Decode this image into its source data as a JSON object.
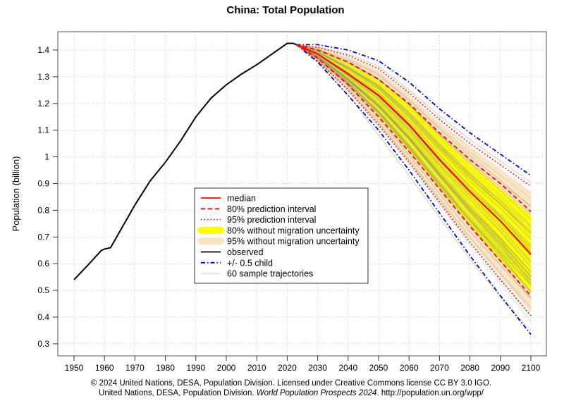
{
  "chart_data": {
    "type": "line",
    "title": "China: Total Population",
    "xlabel": "",
    "ylabel": "Population (billion)",
    "xlim": [
      1945,
      2105
    ],
    "ylim": [
      0.29,
      1.46
    ],
    "x_ticks": [
      1950,
      1960,
      1970,
      1980,
      1990,
      2000,
      2010,
      2020,
      2030,
      2040,
      2050,
      2060,
      2070,
      2080,
      2090,
      2100
    ],
    "y_ticks": [
      0.3,
      0.4,
      0.5,
      0.6,
      0.7,
      0.8,
      0.9,
      1,
      1.1,
      1.2,
      1.3,
      1.4
    ],
    "y_tick_labels": [
      "0.3",
      "0.4",
      "0.5",
      "0.6",
      "0.7",
      "0.8",
      "0.9",
      "1",
      "1.1",
      "1.2",
      "1.3",
      "1.4"
    ],
    "grid": true,
    "legend_position": "center",
    "observed": {
      "name": "observed",
      "color": "#000000",
      "x": [
        1950,
        1955,
        1959,
        1960,
        1962,
        1965,
        1970,
        1975,
        1980,
        1985,
        1990,
        1995,
        2000,
        2005,
        2010,
        2015,
        2020,
        2022,
        2023
      ],
      "y": [
        0.54,
        0.6,
        0.65,
        0.655,
        0.66,
        0.72,
        0.82,
        0.91,
        0.98,
        1.06,
        1.15,
        1.22,
        1.27,
        1.31,
        1.345,
        1.385,
        1.425,
        1.425,
        1.42
      ]
    },
    "projection_x": [
      2023,
      2030,
      2040,
      2050,
      2060,
      2070,
      2080,
      2090,
      2100
    ],
    "series": [
      {
        "name": "median",
        "color": "#ff0000",
        "style": "solid",
        "values": [
          1.42,
          1.385,
          1.31,
          1.23,
          1.12,
          0.99,
          0.87,
          0.76,
          0.635
        ]
      },
      {
        "name": "80% prediction interval",
        "color": "#ff0000",
        "style": "dashed",
        "upper": [
          1.42,
          1.4,
          1.355,
          1.29,
          1.2,
          1.09,
          0.99,
          0.9,
          0.795
        ],
        "lower": [
          1.42,
          1.37,
          1.27,
          1.15,
          1.02,
          0.88,
          0.74,
          0.61,
          0.48
        ]
      },
      {
        "name": "95% prediction interval",
        "color": "#ff0000",
        "style": "dotted",
        "upper": [
          1.42,
          1.41,
          1.38,
          1.33,
          1.24,
          1.14,
          1.05,
          0.97,
          0.89
        ],
        "lower": [
          1.42,
          1.36,
          1.25,
          1.12,
          0.98,
          0.83,
          0.68,
          0.54,
          0.405
        ]
      },
      {
        "name": "80% without migration uncertainty",
        "color": "#ffff00",
        "style": "band",
        "upper": [
          1.42,
          1.4,
          1.35,
          1.285,
          1.195,
          1.08,
          0.975,
          0.88,
          0.78
        ],
        "lower": [
          1.42,
          1.37,
          1.275,
          1.155,
          1.025,
          0.885,
          0.745,
          0.615,
          0.49
        ]
      },
      {
        "name": "95% without migration uncertainty",
        "color": "#fbe3c5",
        "style": "band",
        "upper": [
          1.42,
          1.41,
          1.375,
          1.325,
          1.235,
          1.13,
          1.04,
          0.955,
          0.87
        ],
        "lower": [
          1.42,
          1.36,
          1.255,
          1.125,
          0.985,
          0.835,
          0.69,
          0.55,
          0.42
        ]
      },
      {
        "name": "+/- 0.5 child",
        "color": "#0000cc",
        "style": "dotdash",
        "upper": [
          1.42,
          1.42,
          1.4,
          1.36,
          1.28,
          1.18,
          1.09,
          1.01,
          0.93
        ],
        "lower": [
          1.42,
          1.355,
          1.23,
          1.1,
          0.95,
          0.79,
          0.63,
          0.48,
          0.335
        ]
      },
      {
        "name": "60 sample trajectories",
        "color": "#b0b0a0",
        "style": "thin"
      }
    ],
    "legend": [
      {
        "label": "median",
        "key": "median"
      },
      {
        "label": "80% prediction interval",
        "key": "pi80"
      },
      {
        "label": "95% prediction interval",
        "key": "pi95"
      },
      {
        "label": "80% without migration uncertainty",
        "key": "nm80"
      },
      {
        "label": "95% without migration uncertainty",
        "key": "nm95"
      },
      {
        "label": "observed",
        "key": "observed"
      },
      {
        "label": "+/- 0.5 child",
        "key": "halfchild"
      },
      {
        "label": "60 sample trajectories",
        "key": "traj"
      }
    ]
  },
  "footer": {
    "line1": "© 2024 United Nations, DESA, Population Division. Licensed under Creative Commons license CC BY 3.0 IGO.",
    "line2_a": "United Nations, DESA, Population Division. ",
    "line2_italic": "World Population Prospects 2024",
    "line2_b": ". http://population.un.org/wpp/"
  }
}
